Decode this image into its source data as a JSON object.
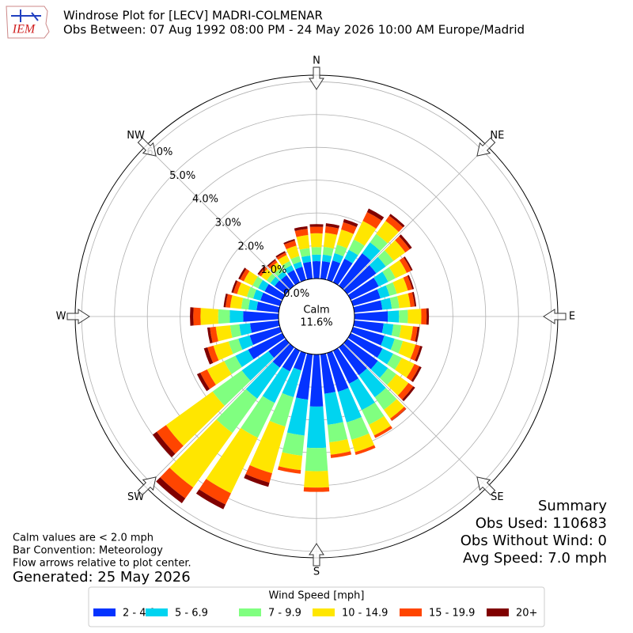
{
  "chart_data": {
    "type": "windrose",
    "logo": "IEM",
    "title": "Windrose Plot for [LECV] MADRI-COLMENAR",
    "subtitle": "Obs Between: 07 Aug 1992 08:00 PM - 24 May 2026 10:00 AM Europe/Madrid",
    "x": [
      0,
      10,
      20,
      30,
      40,
      50,
      60,
      70,
      80,
      90,
      100,
      110,
      120,
      130,
      140,
      150,
      160,
      170,
      180,
      190,
      200,
      210,
      220,
      230,
      240,
      250,
      260,
      270,
      280,
      290,
      300,
      310,
      320,
      330,
      340,
      350
    ],
    "xticks": [
      {
        "value": 0,
        "label": "N"
      },
      {
        "value": 45,
        "label": "NE"
      },
      {
        "value": 90,
        "label": "E"
      },
      {
        "value": 135,
        "label": "SE"
      },
      {
        "value": 180,
        "label": "S"
      },
      {
        "value": 225,
        "label": "SW"
      },
      {
        "value": 270,
        "label": "W"
      },
      {
        "value": 315,
        "label": "NW"
      }
    ],
    "ylim": [
      0,
      6.2
    ],
    "yticks": [
      {
        "value": 0,
        "label": "0.0%"
      },
      {
        "value": 1,
        "label": "1.0%"
      },
      {
        "value": 2,
        "label": "2.0%"
      },
      {
        "value": 3,
        "label": "3.0%"
      },
      {
        "value": 4,
        "label": "4.0%"
      },
      {
        "value": 5,
        "label": "5.0%"
      },
      {
        "value": 6,
        "label": "6.0%"
      }
    ],
    "grid": true,
    "calm": {
      "name": "Calm",
      "value": 11.6,
      "label": "11.6%"
    },
    "legend_title": "Wind Speed [mph]",
    "series": [
      {
        "name": "2 - 4.9",
        "color": "#0433ff",
        "values": [
          0.53,
          0.54,
          0.62,
          0.8,
          1.22,
          1.09,
          0.95,
          0.87,
          0.86,
          1.02,
          0.9,
          0.99,
          1.08,
          1.15,
          1.05,
          1.12,
          1.23,
          1.21,
          1.59,
          1.39,
          0.55,
          0.7,
          0.76,
          0.65,
          1.16,
          0.96,
          0.88,
          1.08,
          0.68,
          0.62,
          0.6,
          0.42,
          0.4,
          0.42,
          0.42,
          0.52
        ]
      },
      {
        "name": "5 - 6.9",
        "color": "#00d4f0",
        "values": [
          0.2,
          0.2,
          0.23,
          0.3,
          0.41,
          0.36,
          0.32,
          0.29,
          0.29,
          0.34,
          0.3,
          0.33,
          0.36,
          0.38,
          0.83,
          0.89,
          0.97,
          0.95,
          1.26,
          1.1,
          0.85,
          1.07,
          1.17,
          1.0,
          0.43,
          0.36,
          0.33,
          0.41,
          0.25,
          0.23,
          0.22,
          0.16,
          0.15,
          0.16,
          0.16,
          0.19
        ]
      },
      {
        "name": "7 - 9.9",
        "color": "#80ff80",
        "values": [
          0.23,
          0.24,
          0.27,
          0.35,
          0.32,
          0.29,
          0.25,
          0.23,
          0.23,
          0.27,
          0.24,
          0.26,
          0.29,
          0.31,
          0.47,
          0.5,
          0.55,
          0.54,
          0.71,
          0.62,
          0.93,
          1.18,
          1.29,
          1.1,
          0.38,
          0.31,
          0.28,
          0.35,
          0.22,
          0.2,
          0.19,
          0.14,
          0.13,
          0.14,
          0.18,
          0.23
        ]
      },
      {
        "name": "10 - 14.9",
        "color": "#ffe600",
        "values": [
          0.42,
          0.43,
          0.48,
          0.63,
          0.49,
          0.44,
          0.38,
          0.35,
          0.34,
          0.41,
          0.36,
          0.4,
          0.43,
          0.46,
          0.33,
          0.36,
          0.39,
          0.38,
          0.5,
          0.44,
          1.48,
          1.88,
          2.05,
          1.75,
          0.58,
          0.48,
          0.44,
          0.54,
          0.34,
          0.31,
          0.3,
          0.21,
          0.2,
          0.21,
          0.33,
          0.4
        ]
      },
      {
        "name": "15 - 19.9",
        "color": "#ff4500",
        "values": [
          0.2,
          0.2,
          0.23,
          0.3,
          0.19,
          0.17,
          0.15,
          0.14,
          0.13,
          0.16,
          0.14,
          0.15,
          0.17,
          0.18,
          0.08,
          0.09,
          0.09,
          0.1,
          0.13,
          0.11,
          0.3,
          0.38,
          0.41,
          0.35,
          0.23,
          0.19,
          0.18,
          0.22,
          0.14,
          0.12,
          0.12,
          0.08,
          0.08,
          0.08,
          0.16,
          0.19
        ]
      },
      {
        "name": "20+",
        "color": "#800000",
        "values": [
          0.08,
          0.09,
          0.1,
          0.12,
          0.07,
          0.08,
          0.05,
          0.05,
          0.05,
          0.07,
          0.06,
          0.07,
          0.07,
          0.07,
          0.01,
          0,
          0,
          0,
          0,
          0,
          0.13,
          0.16,
          0.18,
          0.15,
          0.11,
          0.11,
          0.08,
          0.1,
          0.06,
          0.06,
          0.06,
          0.05,
          0.04,
          0.05,
          0.05,
          0.08
        ]
      }
    ],
    "summary": [
      "Summary",
      "Obs Used: 110683",
      "Obs Without Wind: 0",
      "Avg Speed: 7.0 mph"
    ],
    "notes": [
      "Calm values are < 2.0 mph",
      "Bar Convention: Meteorology",
      "Flow arrows relative to plot center."
    ],
    "generated": "Generated: 25 May 2026"
  }
}
